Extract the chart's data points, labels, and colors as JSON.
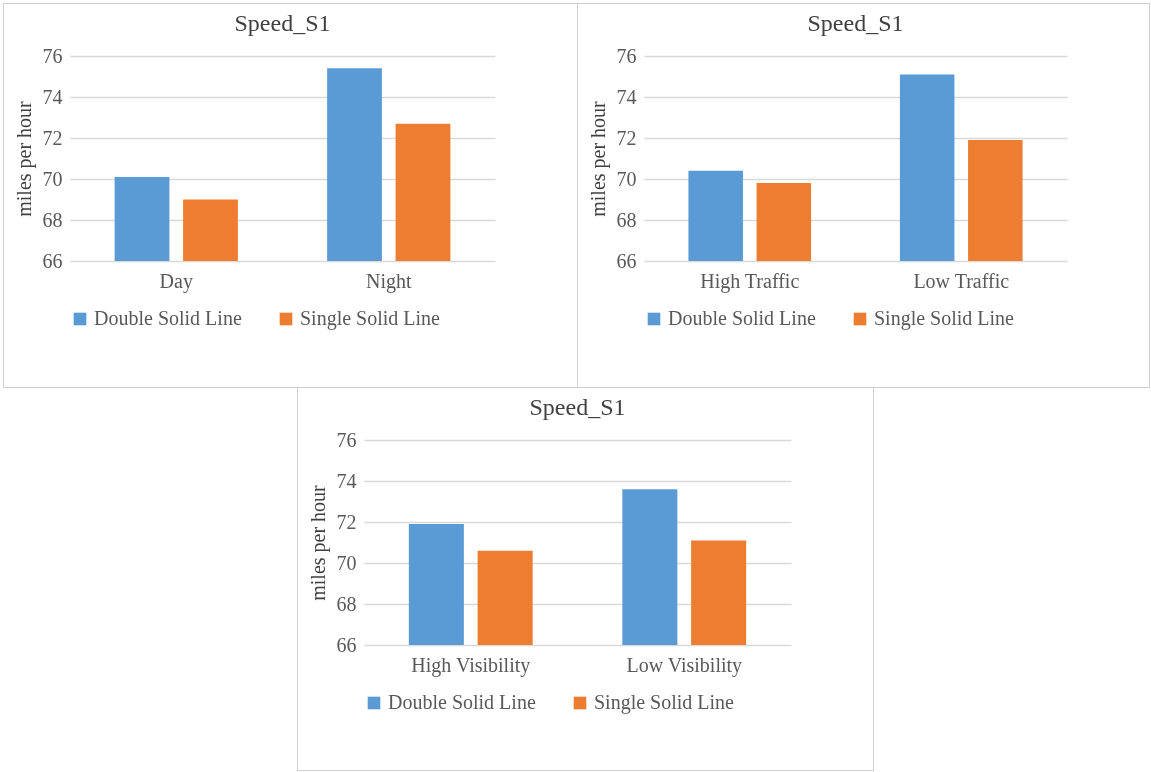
{
  "chart_data": [
    {
      "type": "bar",
      "title": "Speed_S1",
      "ylabel": "miles per hour",
      "categories": [
        "Day",
        "Night"
      ],
      "series": [
        {
          "name": "Double Solid Line",
          "color": "#5b9bd5",
          "values": [
            70.1,
            75.4
          ]
        },
        {
          "name": "Single Solid Line",
          "color": "#ed7d31",
          "values": [
            69.0,
            72.7
          ]
        }
      ],
      "ylim": [
        66,
        76
      ],
      "yticks": [
        66,
        68,
        70,
        72,
        74,
        76
      ],
      "grid": "y",
      "legend": "bottom"
    },
    {
      "type": "bar",
      "title": "Speed_S1",
      "ylabel": "miles per hour",
      "categories": [
        "High Traffic",
        "Low Traffic"
      ],
      "series": [
        {
          "name": "Double Solid Line",
          "color": "#5b9bd5",
          "values": [
            70.4,
            75.1
          ]
        },
        {
          "name": "Single Solid Line",
          "color": "#ed7d31",
          "values": [
            69.8,
            71.9
          ]
        }
      ],
      "ylim": [
        66,
        76
      ],
      "yticks": [
        66,
        68,
        70,
        72,
        74,
        76
      ],
      "grid": "y",
      "legend": "bottom"
    },
    {
      "type": "bar",
      "title": "Speed_S1",
      "ylabel": "miles per hour",
      "categories": [
        "High Visibility",
        "Low Visibility"
      ],
      "series": [
        {
          "name": "Double Solid Line",
          "color": "#5b9bd5",
          "values": [
            71.9,
            73.6
          ]
        },
        {
          "name": "Single Solid Line",
          "color": "#ed7d31",
          "values": [
            70.6,
            71.1
          ]
        }
      ],
      "ylim": [
        66,
        76
      ],
      "yticks": [
        66,
        68,
        70,
        72,
        74,
        76
      ],
      "grid": "y",
      "legend": "bottom"
    }
  ]
}
